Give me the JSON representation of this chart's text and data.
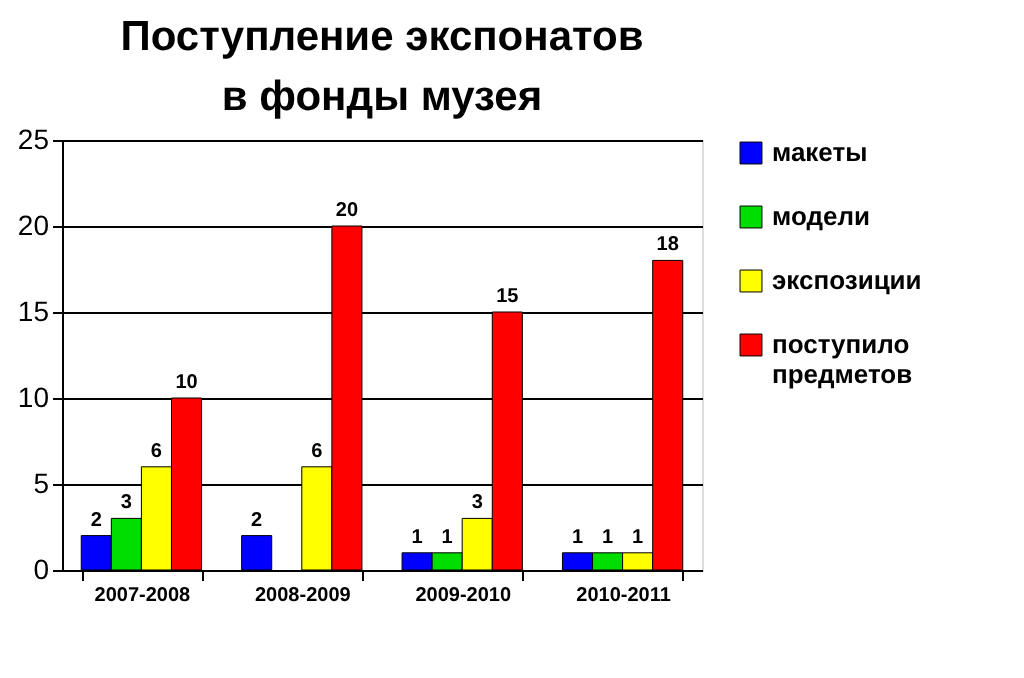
{
  "chart_data": {
    "type": "bar",
    "title": "Поступление экспонатов в фонды музея",
    "categories": [
      "2007-2008",
      "2008-2009",
      "2009-2010",
      "2010-2011"
    ],
    "series": [
      {
        "name": "макеты",
        "color": "#0000ff",
        "values": [
          2,
          2,
          1,
          1
        ]
      },
      {
        "name": "модели",
        "color": "#00dd00",
        "values": [
          3,
          null,
          1,
          1
        ]
      },
      {
        "name": "экспозиции",
        "color": "#ffff00",
        "values": [
          6,
          6,
          3,
          1
        ]
      },
      {
        "name": "поступило предметов",
        "color": "#ff0000",
        "values": [
          10,
          20,
          15,
          18
        ]
      }
    ],
    "ylim": [
      0,
      25
    ],
    "yticks": [
      0,
      5,
      10,
      15,
      20,
      25
    ],
    "grid": "y",
    "legend": "right",
    "data_labels": true
  }
}
